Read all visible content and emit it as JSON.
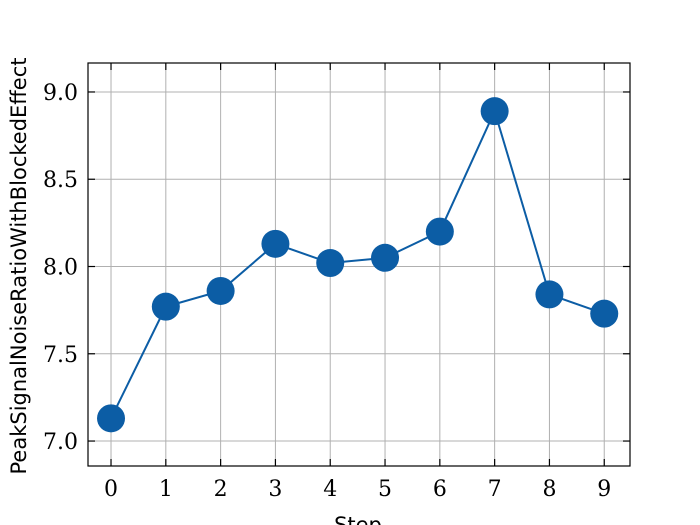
{
  "chart_data": {
    "type": "line",
    "x_label": "Step",
    "y_label": "PeakSignalNoiseRatioWithBlockedEffect",
    "x": [
      0,
      1,
      2,
      3,
      4,
      5,
      6,
      7,
      8,
      9
    ],
    "series": [
      {
        "color": "#0c5da5",
        "values": [
          7.13,
          7.77,
          7.86,
          8.13,
          8.02,
          8.05,
          8.2,
          8.89,
          7.84,
          7.73
        ]
      }
    ],
    "xlim": [
      -0.42,
      9.47
    ],
    "xticks": [
      0,
      1,
      2,
      3,
      4,
      5,
      6,
      7,
      8,
      9
    ],
    "ylim": [
      6.857,
      9.166
    ],
    "yticks": [
      {
        "value": 7.0,
        "label": "7.0"
      },
      {
        "value": 7.5,
        "label": "7.5"
      },
      {
        "value": 8.0,
        "label": "8.0"
      },
      {
        "value": 8.5,
        "label": "8.5"
      },
      {
        "value": 9.0,
        "label": "9.0"
      }
    ],
    "grid": true,
    "markers": true
  }
}
